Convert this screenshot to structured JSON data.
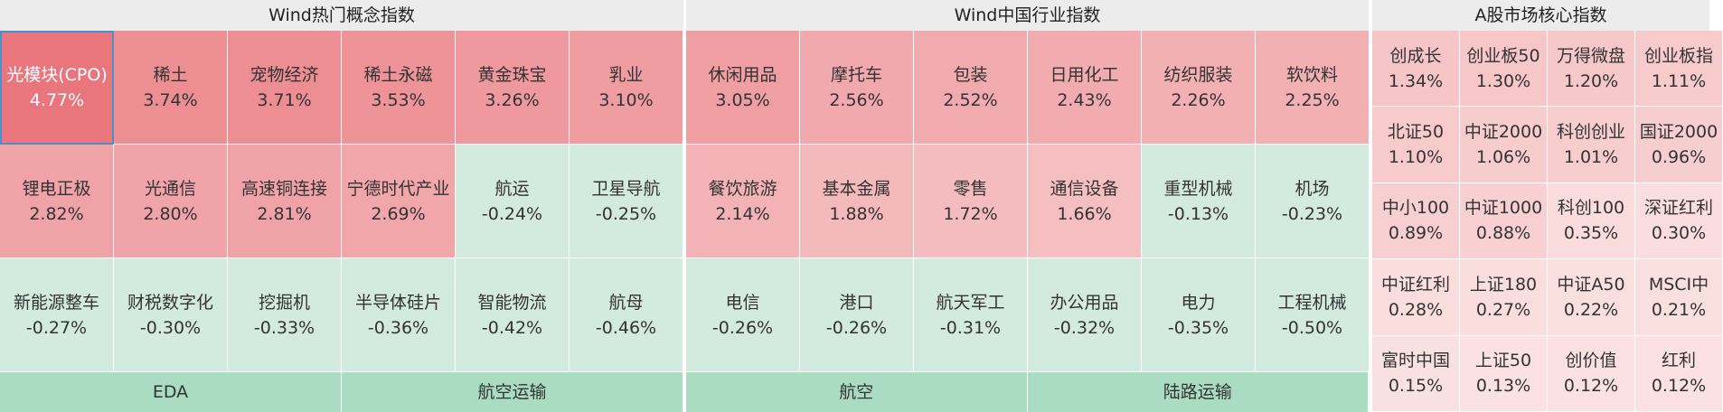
{
  "panels": [
    {
      "title": "Wind热门概念指数",
      "tiles": [
        {
          "label": "光模块(CPO)",
          "value": "4.77%"
        },
        {
          "label": "稀土",
          "value": "3.74%"
        },
        {
          "label": "宠物经济",
          "value": "3.71%"
        },
        {
          "label": "稀土永磁",
          "value": "3.53%"
        },
        {
          "label": "黄金珠宝",
          "value": "3.26%"
        },
        {
          "label": "乳业",
          "value": "3.10%"
        },
        {
          "label": "锂电正极",
          "value": "2.82%"
        },
        {
          "label": "光通信",
          "value": "2.80%"
        },
        {
          "label": "高速铜连接",
          "value": "2.81%"
        },
        {
          "label": "宁德时代产业",
          "value": "2.69%"
        },
        {
          "label": "航运",
          "value": "-0.24%"
        },
        {
          "label": "卫星导航",
          "value": "-0.25%"
        },
        {
          "label": "新能源整车",
          "value": "-0.27%"
        },
        {
          "label": "财税数字化",
          "value": "-0.30%"
        },
        {
          "label": "挖掘机",
          "value": "-0.33%"
        },
        {
          "label": "半导体硅片",
          "value": "-0.36%"
        },
        {
          "label": "智能物流",
          "value": "-0.42%"
        },
        {
          "label": "航母",
          "value": "-0.46%"
        }
      ],
      "footer": [
        "EDA",
        "航空运输"
      ]
    },
    {
      "title": "Wind中国行业指数",
      "tiles": [
        {
          "label": "休闲用品",
          "value": "3.05%"
        },
        {
          "label": "摩托车",
          "value": "2.56%"
        },
        {
          "label": "包装",
          "value": "2.52%"
        },
        {
          "label": "日用化工",
          "value": "2.43%"
        },
        {
          "label": "纺织服装",
          "value": "2.26%"
        },
        {
          "label": "软饮料",
          "value": "2.25%"
        },
        {
          "label": "餐饮旅游",
          "value": "2.14%"
        },
        {
          "label": "基本金属",
          "value": "1.88%"
        },
        {
          "label": "零售",
          "value": "1.72%"
        },
        {
          "label": "通信设备",
          "value": "1.66%"
        },
        {
          "label": "重型机械",
          "value": "-0.13%"
        },
        {
          "label": "机场",
          "value": "-0.23%"
        },
        {
          "label": "电信",
          "value": "-0.26%"
        },
        {
          "label": "港口",
          "value": "-0.26%"
        },
        {
          "label": "航天军工",
          "value": "-0.31%"
        },
        {
          "label": "办公用品",
          "value": "-0.32%"
        },
        {
          "label": "电力",
          "value": "-0.35%"
        },
        {
          "label": "工程机械",
          "value": "-0.50%"
        }
      ],
      "footer": [
        "航空",
        "陆路运输"
      ]
    },
    {
      "title": "A股市场核心指数",
      "tiles": [
        {
          "label": "创成长",
          "value": "1.34%"
        },
        {
          "label": "创业板50",
          "value": "1.30%"
        },
        {
          "label": "万得微盘",
          "value": "1.20%"
        },
        {
          "label": "创业板指",
          "value": "1.11%"
        },
        {
          "label": "北证50",
          "value": "1.10%"
        },
        {
          "label": "中证2000",
          "value": "1.06%"
        },
        {
          "label": "科创创业",
          "value": "1.01%"
        },
        {
          "label": "国证2000",
          "value": "0.96%"
        },
        {
          "label": "中小100",
          "value": "0.89%"
        },
        {
          "label": "中证1000",
          "value": "0.88%"
        },
        {
          "label": "科创100",
          "value": "0.35%"
        },
        {
          "label": "深证红利",
          "value": "0.30%"
        },
        {
          "label": "中证红利",
          "value": "0.28%"
        },
        {
          "label": "上证180",
          "value": "0.27%"
        },
        {
          "label": "中证A50",
          "value": "0.22%"
        },
        {
          "label": "MSCI中",
          "value": "0.21%"
        },
        {
          "label": "富时中国",
          "value": "0.15%"
        },
        {
          "label": "上证50",
          "value": "0.13%"
        },
        {
          "label": "创价值",
          "value": "0.12%"
        },
        {
          "label": "红利",
          "value": "0.12%"
        }
      ]
    }
  ]
}
